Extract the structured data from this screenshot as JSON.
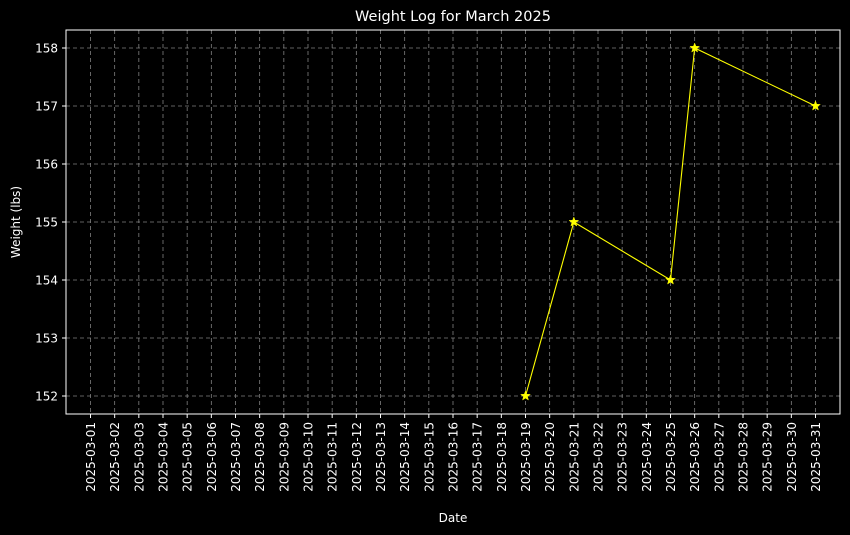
{
  "chart_data": {
    "type": "line",
    "title": "Weight Log for March 2025",
    "xlabel": "Date",
    "ylabel": "Weight (lbs)",
    "x_ticks": [
      "2025-03-01",
      "2025-03-02",
      "2025-03-03",
      "2025-03-04",
      "2025-03-05",
      "2025-03-06",
      "2025-03-07",
      "2025-03-08",
      "2025-03-09",
      "2025-03-10",
      "2025-03-11",
      "2025-03-12",
      "2025-03-13",
      "2025-03-14",
      "2025-03-15",
      "2025-03-16",
      "2025-03-17",
      "2025-03-18",
      "2025-03-19",
      "2025-03-20",
      "2025-03-21",
      "2025-03-22",
      "2025-03-23",
      "2025-03-24",
      "2025-03-25",
      "2025-03-26",
      "2025-03-27",
      "2025-03-28",
      "2025-03-29",
      "2025-03-30",
      "2025-03-31"
    ],
    "y_ticks": [
      152,
      153,
      154,
      155,
      156,
      157,
      158
    ],
    "xlim": [
      "2025-03-01",
      "2025-03-31"
    ],
    "ylim": [
      151.7,
      158.3
    ],
    "grid": true,
    "series": [
      {
        "marker": "star",
        "color": "#ffff00",
        "points": [
          {
            "x": "2025-03-19",
            "y": 152
          },
          {
            "x": "2025-03-21",
            "y": 155
          },
          {
            "x": "2025-03-25",
            "y": 154
          },
          {
            "x": "2025-03-26",
            "y": 158
          },
          {
            "x": "2025-03-31",
            "y": 157
          }
        ]
      }
    ],
    "colors": {
      "background": "#000000",
      "foreground": "#ffffff",
      "grid": "#808080",
      "line": "#ffff00"
    }
  }
}
